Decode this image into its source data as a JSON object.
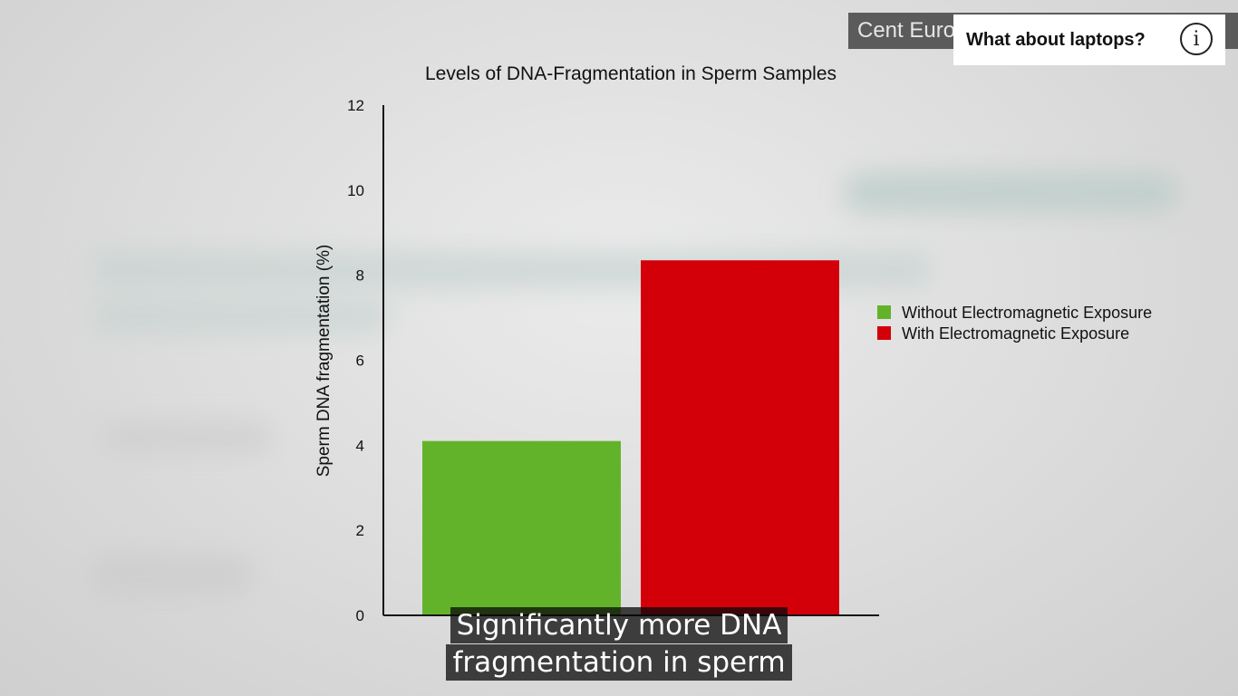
{
  "source_label": "Cent Euro... ...l. 4(7)(1):6...",
  "info_card": {
    "text": "What about laptops?",
    "icon": "info-icon"
  },
  "subtitle": [
    "Significantly more DNA",
    "fragmentation in sperm"
  ],
  "chart_data": {
    "type": "bar",
    "title": "Levels of DNA-Fragmentation in Sperm Samples",
    "ylabel": "Sperm DNA fragmentation (%)",
    "xlabel": "",
    "ylim": [
      0,
      12
    ],
    "yticks": [
      0,
      2,
      4,
      6,
      8,
      10,
      12
    ],
    "grid": false,
    "legend_position": "right",
    "series": [
      {
        "name": "Without Electromagnetic Exposure",
        "value": 4.1,
        "color": "#63b32a"
      },
      {
        "name": "With Electromagnetic Exposure",
        "value": 8.35,
        "color": "#d3000a"
      }
    ]
  }
}
